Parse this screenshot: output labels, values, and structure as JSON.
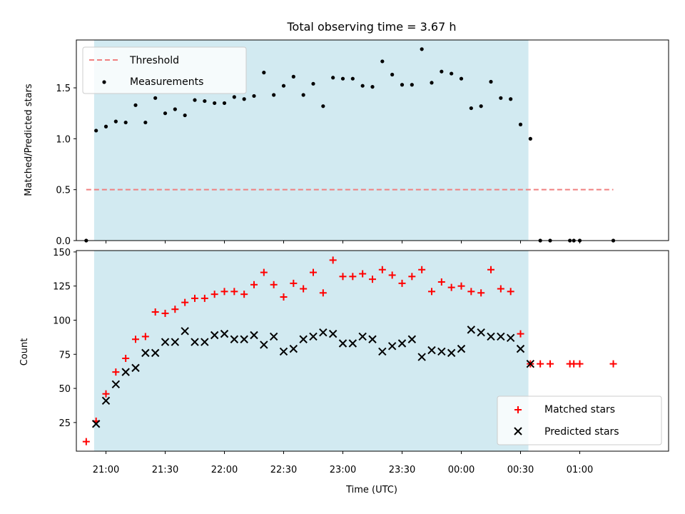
{
  "chart_data": [
    {
      "type": "scatter",
      "title": "Total observing time = 3.67 h",
      "ylabel": "Matched/Predicted stars",
      "xlim": [
        "20:45",
        "01:45"
      ],
      "ylim": [
        0,
        1.97
      ],
      "yticks": [
        0.0,
        0.5,
        1.0,
        1.5
      ],
      "ytick_labels": [
        "0.0",
        "0.5",
        "1.0",
        "1.5"
      ],
      "shaded_span": [
        "20:54",
        "00:34"
      ],
      "legend": {
        "position": "top-left",
        "entries": [
          "Threshold",
          "Measurements"
        ]
      },
      "series": [
        {
          "name": "Threshold",
          "style": "dashed-line",
          "color": "#f08080",
          "x": [
            "20:50",
            "01:17"
          ],
          "y": [
            0.5,
            0.5
          ]
        },
        {
          "name": "Measurements",
          "style": "dot",
          "color": "#000000",
          "x": [
            "20:50",
            "20:55",
            "21:00",
            "21:05",
            "21:10",
            "21:15",
            "21:20",
            "21:25",
            "21:30",
            "21:35",
            "21:40",
            "21:45",
            "21:50",
            "21:55",
            "22:00",
            "22:05",
            "22:10",
            "22:15",
            "22:20",
            "22:25",
            "22:30",
            "22:35",
            "22:40",
            "22:45",
            "22:50",
            "22:55",
            "23:00",
            "23:05",
            "23:10",
            "23:15",
            "23:20",
            "23:25",
            "23:30",
            "23:35",
            "23:40",
            "23:45",
            "23:50",
            "23:55",
            "00:00",
            "00:05",
            "00:10",
            "00:15",
            "00:20",
            "00:25",
            "00:30",
            "00:35",
            "00:40",
            "00:45",
            "00:55",
            "00:57",
            "01:00",
            "01:17"
          ],
          "y": [
            0.0,
            1.08,
            1.12,
            1.17,
            1.16,
            1.33,
            1.16,
            1.4,
            1.25,
            1.29,
            1.23,
            1.38,
            1.37,
            1.35,
            1.35,
            1.41,
            1.39,
            1.42,
            1.65,
            1.43,
            1.52,
            1.61,
            1.43,
            1.54,
            1.32,
            1.6,
            1.59,
            1.59,
            1.52,
            1.51,
            1.76,
            1.63,
            1.53,
            1.53,
            1.88,
            1.55,
            1.66,
            1.64,
            1.59,
            1.3,
            1.32,
            1.56,
            1.4,
            1.39,
            1.14,
            1.0,
            0.0,
            0.0,
            0.0,
            0.0,
            0.0,
            0.0
          ]
        }
      ]
    },
    {
      "type": "scatter",
      "xlabel": "Time (UTC)",
      "ylabel": "Count",
      "xlim": [
        "20:45",
        "01:45"
      ],
      "xticks": [
        "21:00",
        "21:30",
        "22:00",
        "22:30",
        "23:00",
        "23:30",
        "00:00",
        "00:30",
        "01:00"
      ],
      "ylim": [
        4,
        151
      ],
      "yticks": [
        25,
        50,
        75,
        100,
        125,
        150
      ],
      "shaded_span": [
        "20:54",
        "00:34"
      ],
      "legend": {
        "position": "bottom-right",
        "entries": [
          "Matched stars",
          "Predicted stars"
        ]
      },
      "series": [
        {
          "name": "Matched stars",
          "style": "plus",
          "color": "#ff0000",
          "x": [
            "20:50",
            "20:55",
            "21:00",
            "21:05",
            "21:10",
            "21:15",
            "21:20",
            "21:25",
            "21:30",
            "21:35",
            "21:40",
            "21:45",
            "21:50",
            "21:55",
            "22:00",
            "22:05",
            "22:10",
            "22:15",
            "22:20",
            "22:25",
            "22:30",
            "22:35",
            "22:40",
            "22:45",
            "22:50",
            "22:55",
            "23:00",
            "23:05",
            "23:10",
            "23:15",
            "23:20",
            "23:25",
            "23:30",
            "23:35",
            "23:40",
            "23:45",
            "23:50",
            "23:55",
            "00:00",
            "00:05",
            "00:10",
            "00:15",
            "00:20",
            "00:25",
            "00:30",
            "00:35",
            "00:40",
            "00:45",
            "00:55",
            "00:57",
            "01:00",
            "01:17"
          ],
          "y": [
            11,
            26,
            46,
            62,
            72,
            86,
            88,
            106,
            105,
            108,
            113,
            116,
            116,
            119,
            121,
            121,
            119,
            126,
            135,
            126,
            117,
            127,
            123,
            135,
            120,
            144,
            132,
            132,
            134,
            130,
            137,
            133,
            127,
            132,
            137,
            121,
            128,
            124,
            125,
            121,
            120,
            137,
            123,
            121,
            90,
            68,
            68,
            68,
            68,
            68,
            68,
            68
          ]
        },
        {
          "name": "Predicted stars",
          "style": "x",
          "color": "#000000",
          "x": [
            "20:55",
            "21:00",
            "21:05",
            "21:10",
            "21:15",
            "21:20",
            "21:25",
            "21:30",
            "21:35",
            "21:40",
            "21:45",
            "21:50",
            "21:55",
            "22:00",
            "22:05",
            "22:10",
            "22:15",
            "22:20",
            "22:25",
            "22:30",
            "22:35",
            "22:40",
            "22:45",
            "22:50",
            "22:55",
            "23:00",
            "23:05",
            "23:10",
            "23:15",
            "23:20",
            "23:25",
            "23:30",
            "23:35",
            "23:40",
            "23:45",
            "23:50",
            "23:55",
            "00:00",
            "00:05",
            "00:10",
            "00:15",
            "00:20",
            "00:25",
            "00:30",
            "00:35"
          ],
          "y": [
            24,
            41,
            53,
            62,
            65,
            76,
            76,
            84,
            84,
            92,
            84,
            84,
            89,
            90,
            86,
            86,
            89,
            82,
            88,
            77,
            79,
            86,
            88,
            91,
            90,
            83,
            83,
            88,
            86,
            77,
            81,
            83,
            86,
            73,
            78,
            77,
            76,
            79,
            93,
            91,
            88,
            88,
            87,
            79,
            68
          ]
        }
      ]
    }
  ],
  "colors": {
    "shade": "#add8e6",
    "threshold": "#f08080",
    "matched": "#ff0000",
    "predicted": "#000000"
  }
}
